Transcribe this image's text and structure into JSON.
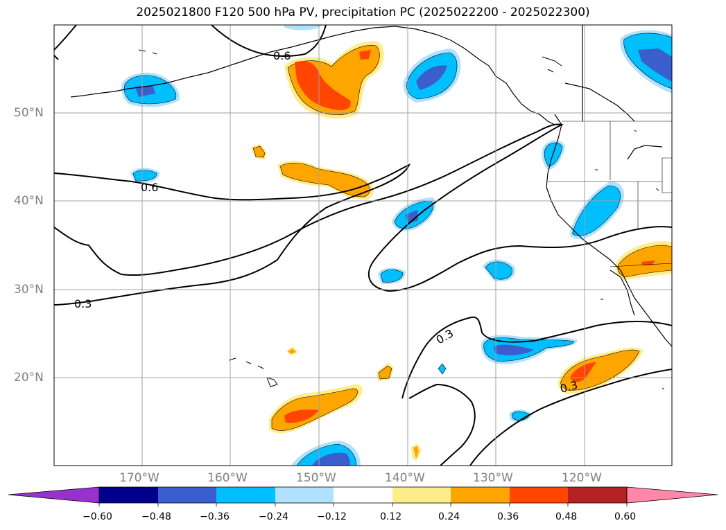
{
  "title": "2025021800 F120 500 hPa PV, precipitation PC (2025022200 - 2025022300)",
  "map": {
    "lat_labels": [
      "50°N",
      "40°N",
      "30°N",
      "20°N"
    ],
    "lon_labels": [
      "170°W",
      "160°W",
      "150°W",
      "140°W",
      "130°W",
      "120°W"
    ],
    "contour_labels": [
      "0.6",
      "0.6",
      "0.3",
      "0.3",
      "0.3"
    ]
  },
  "colorbar": {
    "ticks": [
      "−0.60",
      "−0.48",
      "−0.36",
      "−0.24",
      "−0.12",
      "0.12",
      "0.24",
      "0.36",
      "0.48",
      "0.60"
    ],
    "colors": [
      "#9932cc",
      "#00008b",
      "#3a5fcd",
      "#00bfff",
      "#b0e2ff",
      "#ffffff",
      "#ffec8b",
      "#ffa500",
      "#ff4500",
      "#b22222",
      "#ff88aa",
      "#ff88aa"
    ]
  },
  "colors": {
    "blue_light": "#b0e2ff",
    "blue_mid": "#00bfff",
    "blue_dark": "#3a5fcd",
    "yellow": "#ffec8b",
    "orange": "#ffa500",
    "red": "#ff4500"
  }
}
